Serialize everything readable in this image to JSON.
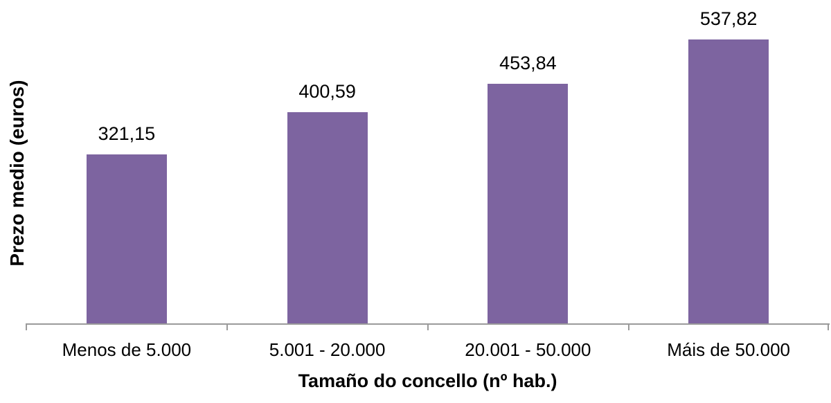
{
  "chart_data": {
    "type": "bar",
    "categories": [
      "Menos de 5.000",
      "5.001 - 20.000",
      "20.001 - 50.000",
      "Máis de 50.000"
    ],
    "values": [
      321.15,
      400.59,
      453.84,
      537.82
    ],
    "value_labels": [
      "321,15",
      "400,59",
      "453,84",
      "537,82"
    ],
    "title": "",
    "xlabel": "Tamaño do concello (nº hab.)",
    "ylabel": "Prezo medio (euros)",
    "ylim": [
      0,
      560
    ],
    "grid": false,
    "legend": false,
    "bar_color": "#7D64A0",
    "axis_color": "#9A9A9A",
    "text_color": "#000000"
  }
}
